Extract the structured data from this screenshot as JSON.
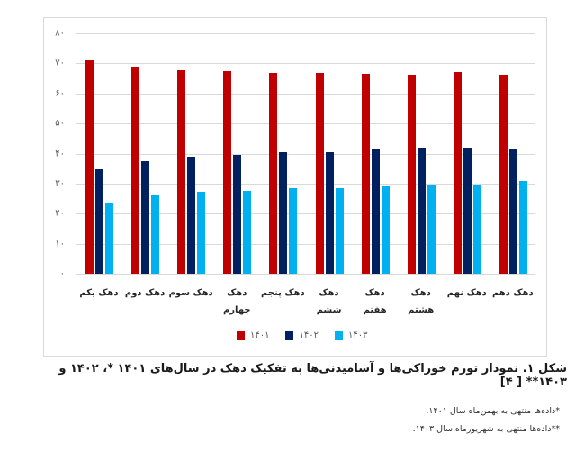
{
  "chart_data": {
    "type": "bar",
    "title": "",
    "xlabel": "",
    "ylabel": "",
    "ylim": [
      0,
      80
    ],
    "yticks": [
      "۰",
      "۱۰",
      "۲۰",
      "۳۰",
      "۴۰",
      "۵۰",
      "۶۰",
      "۷۰",
      "۸۰"
    ],
    "ytick_values": [
      0,
      10,
      20,
      30,
      40,
      50,
      60,
      70,
      80
    ],
    "grid": true,
    "legend_position": "bottom",
    "categories": [
      "دهک یکم",
      "دهک دوم",
      "دهک سوم",
      "دهک چهارم",
      "دهک پنجم",
      "دهک ششم",
      "دهک هفتم",
      "دهک هشتم",
      "دهک نهم",
      "دهک دهم"
    ],
    "series": [
      {
        "name": "۱۴۰۱",
        "color": "#c00000",
        "values": [
          71.0,
          69.0,
          67.8,
          67.3,
          66.9,
          66.7,
          66.6,
          66.1,
          67.2,
          66.2
        ]
      },
      {
        "name": "۱۴۰۲",
        "color": "#002060",
        "values": [
          34.8,
          37.6,
          39.1,
          39.7,
          40.5,
          40.5,
          41.4,
          42.0,
          42.1,
          41.8
        ]
      },
      {
        "name": "۱۴۰۳",
        "color": "#00b0f0",
        "values": [
          23.6,
          26.0,
          27.2,
          27.6,
          28.4,
          28.5,
          29.3,
          29.6,
          29.8,
          30.8
        ]
      }
    ]
  },
  "categories_display": [
    {
      "line1": "دهک یکم",
      "line2": ""
    },
    {
      "line1": "دهک دوم",
      "line2": ""
    },
    {
      "line1": "دهک سوم",
      "line2": ""
    },
    {
      "line1": "دهک",
      "line2": "چهارم"
    },
    {
      "line1": "دهک پنجم",
      "line2": ""
    },
    {
      "line1": "دهک",
      "line2": "ششم"
    },
    {
      "line1": "دهک هفتم",
      "line2": ""
    },
    {
      "line1": "دهک",
      "line2": "هشتم"
    },
    {
      "line1": "دهک نهم",
      "line2": ""
    },
    {
      "line1": "دهک دهم",
      "line2": ""
    }
  ],
  "caption": "شکل ۱. نمودار تورم خوراکی‌ها و آشامیدنی‌ها به تفکیک دهک در سال‌های ۱۴۰۱ *، ۱۴۰۲ و ۱۴۰۳** [ ۴]",
  "notes": [
    "*داده‌ها منتهی به بهمن‌ماه سال ۱۴۰۱.",
    "**داده‌ها منتهی به شهریورماه سال ۱۴۰۳."
  ]
}
